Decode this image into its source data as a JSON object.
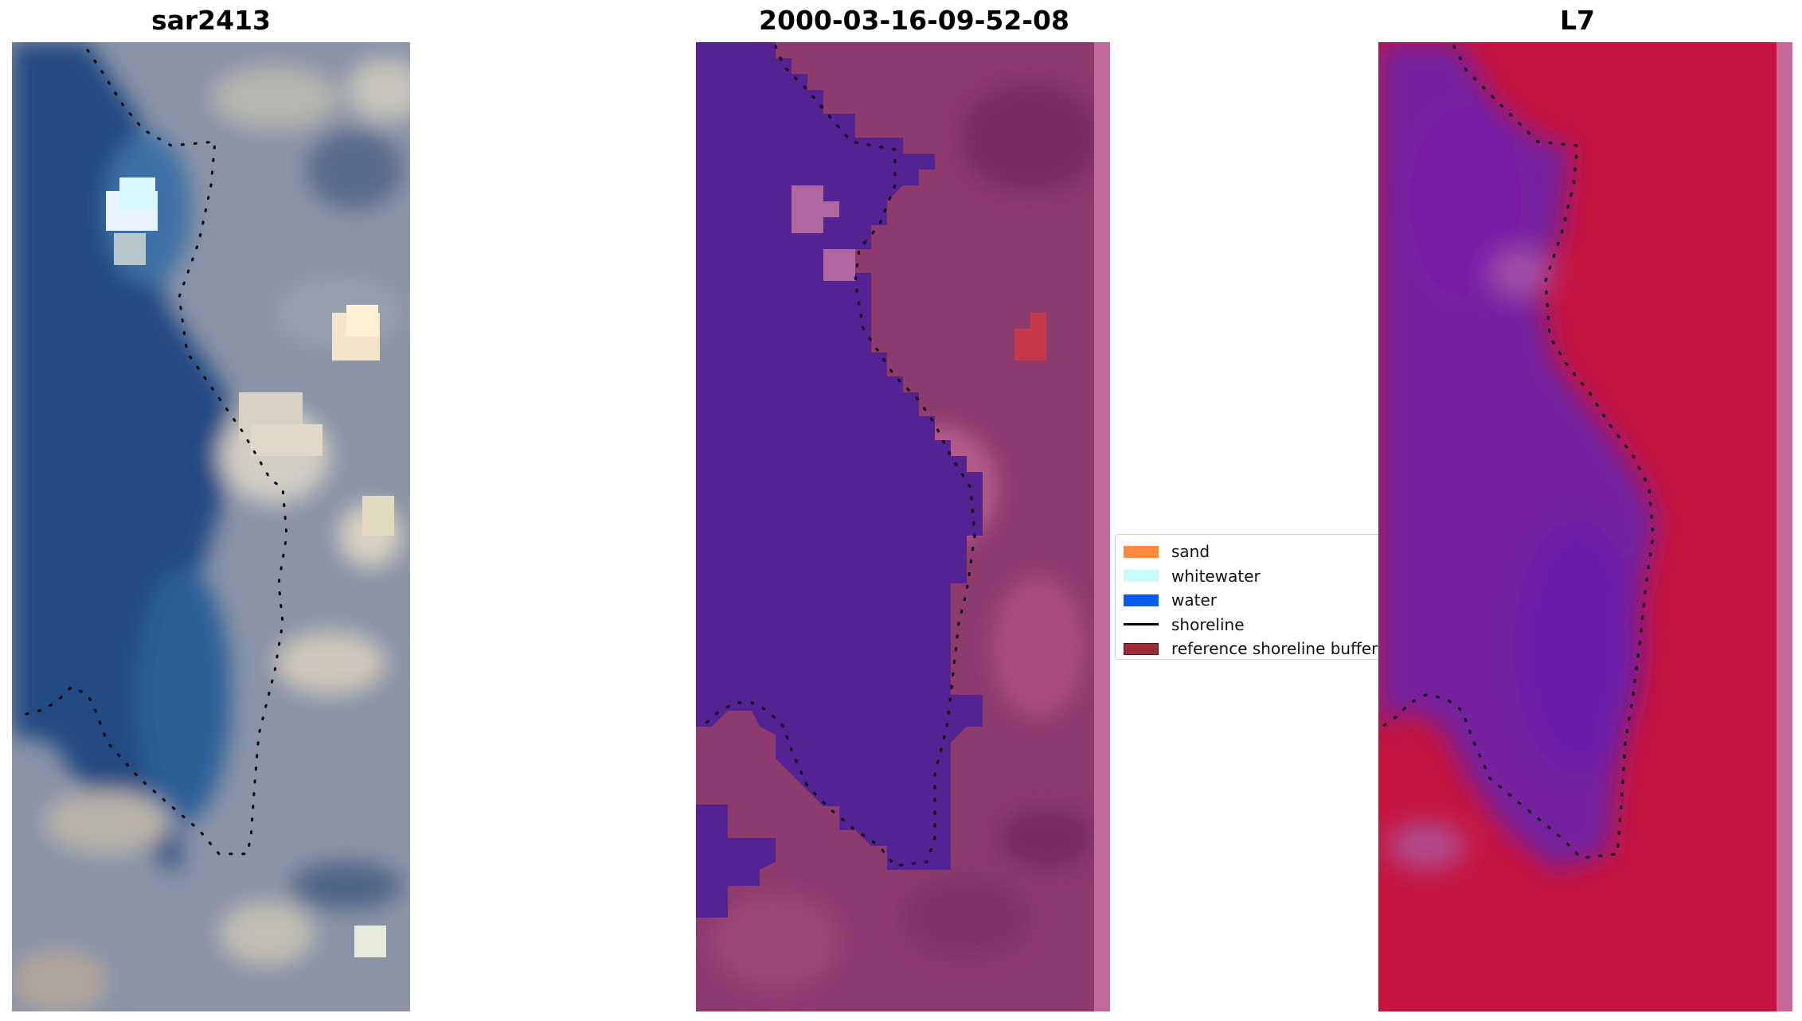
{
  "panels": [
    {
      "title": "sar2413"
    },
    {
      "title": "2000-03-16-09-52-08"
    },
    {
      "title": "L7"
    }
  ],
  "legend": {
    "items": [
      {
        "label": "sand",
        "color": "#ff8a3d",
        "kind": "patch"
      },
      {
        "label": "whitewater",
        "color": "#c8fbf8",
        "kind": "patch"
      },
      {
        "label": "water",
        "color": "#0a5cf0",
        "kind": "patch"
      },
      {
        "label": "shoreline",
        "color": "#000000",
        "kind": "line"
      },
      {
        "label": "reference shoreline buffer",
        "color": "#9b2b35",
        "kind": "patch"
      }
    ]
  },
  "colors": {
    "rgb_water": "#234a82",
    "rgb_land": "#8c96a8",
    "class_water": "#532293",
    "class_land": "#8d3a6e",
    "class_edge_strip": "#c46a9b",
    "ndwi_water": "#7424a0",
    "ndwi_land": "#c4143f"
  }
}
